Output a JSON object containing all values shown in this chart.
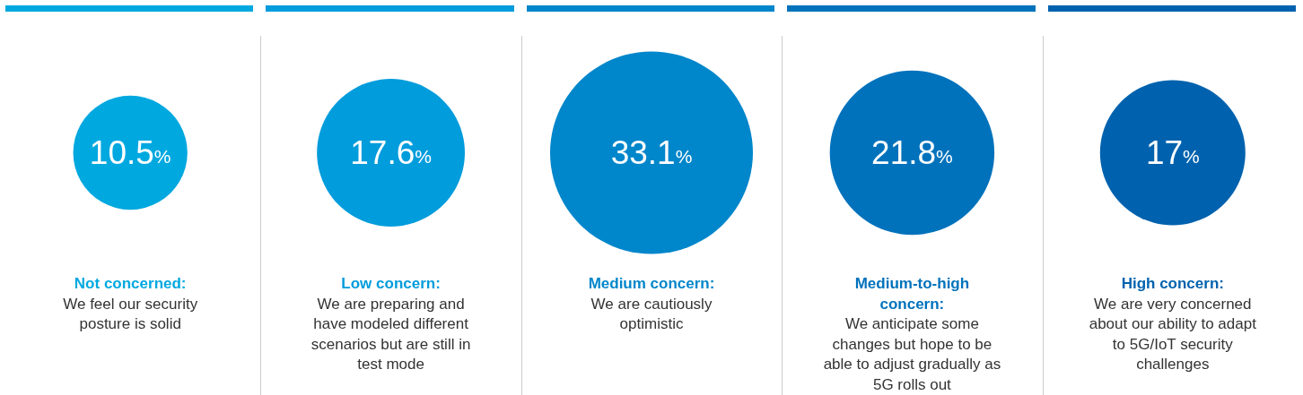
{
  "chart_data": {
    "type": "other",
    "categories": [
      null,
      null,
      null,
      null,
      null
    ],
    "values": [
      10.5,
      17.6,
      33.1,
      21.8,
      17
    ],
    "value_labels": [
      "10.5%",
      "17.6%",
      "33.1%",
      "21.8%",
      "17%"
    ],
    "colors": [
      "#00a8e0",
      "#009cdc",
      "#0086cb",
      "#0072bc",
      "#0062ae"
    ],
    "annotations": [
      "Not concerned:",
      "We feel our security posture is solid",
      "Low concern:",
      "We are preparing and have modeled different scenarios but are still in test mode",
      "Medium concern:",
      "We are cautiously optimistic",
      "Medium-to-high concern:",
      "We anticipate some changes but hope to be able to adjust gradually as 5G rolls out",
      "High concern:",
      "We are very concerned about our ability to adapt to 5G/IoT security challenges"
    ]
  }
}
